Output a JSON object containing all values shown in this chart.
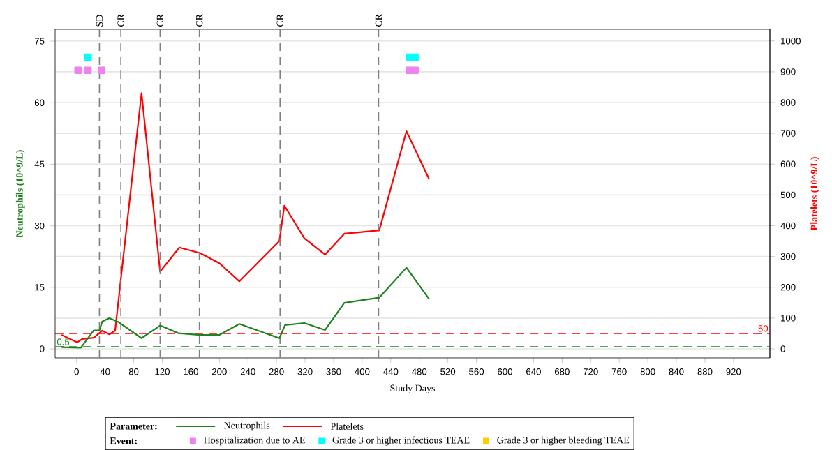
{
  "chart_data": {
    "type": "line",
    "xlabel": "Study Days",
    "ylabel": "Neutrophils (10^9/L)",
    "y2label": "Platelets (10^9/L)",
    "legend_title": "Parameter:",
    "annotations": [
      "Event:"
    ],
    "xlim": [
      -30,
      971
    ],
    "xticks": [
      0,
      40,
      80,
      120,
      160,
      200,
      240,
      280,
      320,
      360,
      400,
      440,
      480,
      520,
      560,
      600,
      640,
      680,
      720,
      760,
      800,
      840,
      880,
      920
    ],
    "ylim": [
      -2.2,
      77.9
    ],
    "yticks": [
      0,
      15,
      30,
      45,
      60,
      75
    ],
    "y2lim": [
      -29.5,
      1038
    ],
    "y2ticks": [
      0,
      100,
      200,
      300,
      400,
      500,
      600,
      700,
      800,
      900,
      1000
    ],
    "grid": "y",
    "legend": "bottom",
    "series": [
      {
        "name": "Neutrophils",
        "color": "#1e821e",
        "marker": "none",
        "axis": "y",
        "x": [
          -21,
          6,
          24,
          32,
          36,
          46,
          59,
          91,
          117,
          143,
          173,
          200,
          228,
          284,
          292,
          319,
          348,
          375,
          424,
          462,
          494
        ],
        "values": [
          0.4,
          0.3,
          4.5,
          4.5,
          6.7,
          7.5,
          6.5,
          2.6,
          5.7,
          3.8,
          3.4,
          3.4,
          6.1,
          2.6,
          5.8,
          6.3,
          4.6,
          11.2,
          12.5,
          19.8,
          12.1
        ]
      },
      {
        "name": "Platelets",
        "color": "#ff0000",
        "marker": "none",
        "axis": "y2",
        "x": [
          -21,
          1,
          8,
          24,
          36,
          46,
          54,
          91,
          117,
          144,
          173,
          200,
          228,
          284,
          291,
          319,
          348,
          375,
          424,
          462,
          494
        ],
        "values": [
          45,
          21,
          32,
          36,
          59,
          47,
          59,
          831,
          251,
          329,
          311,
          278,
          219,
          350,
          465,
          359,
          306,
          374,
          385,
          707,
          550
        ]
      },
      {
        "name": "Hospitalization due to AE",
        "type": "scatter",
        "color": "#ee82ee",
        "marker": "square",
        "axis": "y",
        "x": [
          2,
          16,
          35,
          466,
          474
        ],
        "values": [
          67.9,
          67.9,
          67.9,
          67.9,
          67.9
        ]
      },
      {
        "name": "Grade 3 or higher infectious TEAE",
        "type": "scatter",
        "color": "#00ffff",
        "marker": "square",
        "axis": "y",
        "x": [
          16,
          466,
          474
        ],
        "values": [
          71.1,
          71.1,
          71.1
        ]
      },
      {
        "name": "Grade 3 or higher bleeding TEAE",
        "type": "scatter",
        "color": "#ffcc00",
        "marker": "square",
        "axis": "y"
      }
    ],
    "ref_lines": [
      {
        "axis": "y",
        "value": 0.5,
        "label": "0.5",
        "color": "#1e821e",
        "line_style": "dashed"
      },
      {
        "axis": "y2",
        "value": 50,
        "label": "50",
        "color": "#ff0000",
        "line_style": "dashed"
      },
      {
        "axis": "x",
        "value": 32,
        "label": "SD",
        "color": "#808080",
        "line_style": "dashed"
      },
      {
        "axis": "x",
        "value": 62,
        "label": "CR",
        "color": "#808080",
        "line_style": "dashed"
      },
      {
        "axis": "x",
        "value": 117,
        "label": "CR",
        "color": "#808080",
        "line_style": "dashed"
      },
      {
        "axis": "x",
        "value": 172,
        "label": "CR",
        "color": "#808080",
        "line_style": "dashed"
      },
      {
        "axis": "x",
        "value": 285,
        "label": "CR",
        "color": "#808080",
        "line_style": "dashed"
      },
      {
        "axis": "x",
        "value": 423,
        "label": "CR",
        "color": "#808080",
        "line_style": "dashed"
      }
    ]
  }
}
